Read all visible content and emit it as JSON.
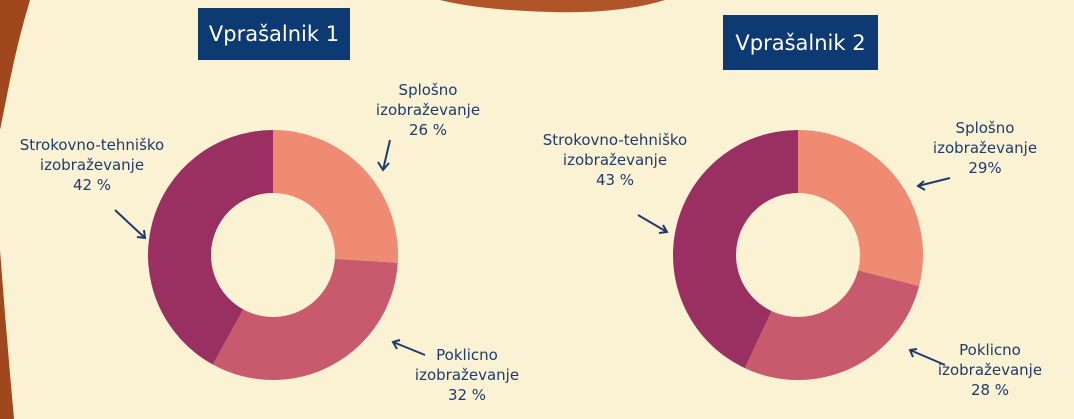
{
  "chart_data": [
    {
      "type": "pie",
      "title": "Vprašalnik 1",
      "categories": [
        "Splošno izobraževanje",
        "Poklicno izobraževanje",
        "Strokovno-tehniško izobraževanje"
      ],
      "values": [
        26,
        32,
        42
      ],
      "value_labels": [
        "26 %",
        "32 %",
        "42 %"
      ],
      "colors": [
        "#ee8b72",
        "#c75a6c",
        "#993061"
      ],
      "donut": true
    },
    {
      "type": "pie",
      "title": "Vprašalnik 2",
      "categories": [
        "Splošno izobraževanje",
        "Poklicno izobraževanje",
        "Strokovno-tehniško izobraževanje"
      ],
      "values": [
        29,
        28,
        43
      ],
      "value_labels": [
        "29%",
        "28 %",
        "43 %"
      ],
      "colors": [
        "#ee8b72",
        "#c75a6c",
        "#993061"
      ],
      "donut": true
    }
  ]
}
